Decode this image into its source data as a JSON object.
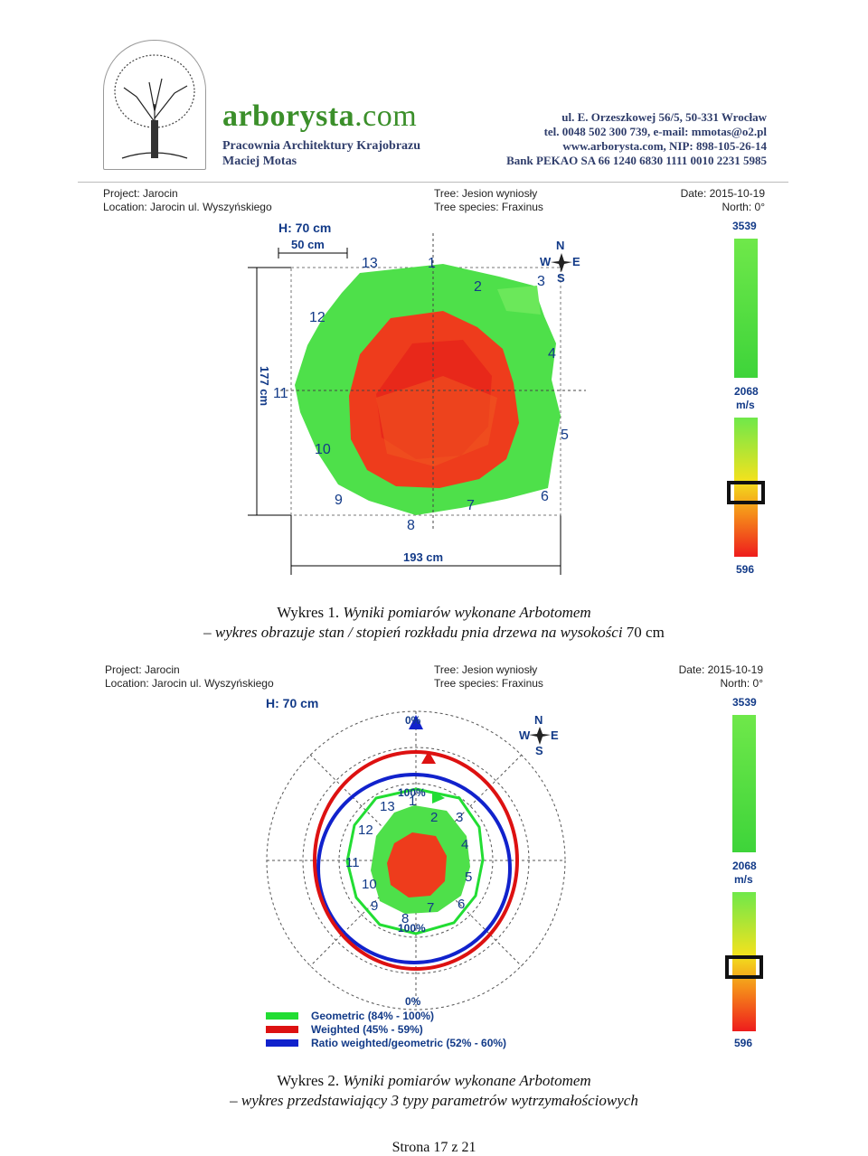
{
  "header": {
    "brand_main": "arborysta",
    "brand_tld": ".com",
    "subtitle_line1": "Pracownia Architektury Krajobrazu",
    "subtitle_line2": "Maciej Motas",
    "address": "ul. E. Orzeszkowej 56/5, 50-331 Wrocław",
    "phone_email": "tel. 0048 502 300 739, e-mail: mmotas@o2.pl",
    "web_nip": "www.arborysta.com, NIP: 898-105-26-14",
    "bank": "Bank PEKAO SA 66 1240 6830 1111 0010 2231 5985"
  },
  "chart1": {
    "project": "Project: Jarocin",
    "location": "Location: Jarocin ul. Wyszyńskiego",
    "tree": "Tree: Jesion wyniosły",
    "species": "Tree species: Fraxinus",
    "date": "Date: 2015-10-19",
    "north": "North: 0°",
    "height": "H: 70 cm",
    "scale": "50 cm",
    "vertical_dim": "177 cm",
    "horizontal_dim": "193 cm",
    "compass": {
      "n": "N",
      "w": "W",
      "e": "E",
      "s": "S"
    },
    "sensor_labels": [
      "1",
      "2",
      "3",
      "4",
      "5",
      "6",
      "7",
      "8",
      "9",
      "10",
      "11",
      "12",
      "13"
    ],
    "scale_bar": {
      "max": "3539",
      "mid": "2068",
      "unit": "m/s",
      "min": "596"
    }
  },
  "caption1": {
    "prefix": "Wykres 1.",
    "line1": "Wyniki pomiarów wykonane Arbotomem",
    "line2": "– wykres obrazuje stan / stopień rozkładu pnia drzewa na wysokości",
    "line2_tail": "70 cm"
  },
  "chart2": {
    "project": "Project: Jarocin",
    "location": "Location: Jarocin ul. Wyszyńskiego",
    "tree": "Tree: Jesion wyniosły",
    "species": "Tree species: Fraxinus",
    "date": "Date: 2015-10-19",
    "north": "North: 0°",
    "height": "H: 70 cm",
    "pct_top": "0%",
    "pct_bottom": "0%",
    "pct_inner_top": "100%",
    "pct_inner_bottom": "100%",
    "compass": {
      "n": "N",
      "w": "W",
      "e": "E",
      "s": "S"
    },
    "sensor_labels": [
      "1",
      "2",
      "3",
      "4",
      "5",
      "6",
      "7",
      "8",
      "9",
      "10",
      "11",
      "12",
      "13"
    ],
    "legend": [
      {
        "label": "Geometric (84% - 100%)",
        "color": "#22dd33"
      },
      {
        "label": "Weighted (45% - 59%)",
        "color": "#dd1111"
      },
      {
        "label": "Ratio weighted/geometric (52% - 60%)",
        "color": "#1122cc"
      }
    ],
    "scale_bar": {
      "max": "3539",
      "mid": "2068",
      "unit": "m/s",
      "min": "596"
    }
  },
  "caption2": {
    "prefix": "Wykres 2.",
    "line1": "Wyniki pomiarów wykonane Arbotomem",
    "line2": "– wykres przedstawiający 3 typy parametrów wytrzymałościowych"
  },
  "footer": {
    "page": "Strona 17 z 21"
  }
}
